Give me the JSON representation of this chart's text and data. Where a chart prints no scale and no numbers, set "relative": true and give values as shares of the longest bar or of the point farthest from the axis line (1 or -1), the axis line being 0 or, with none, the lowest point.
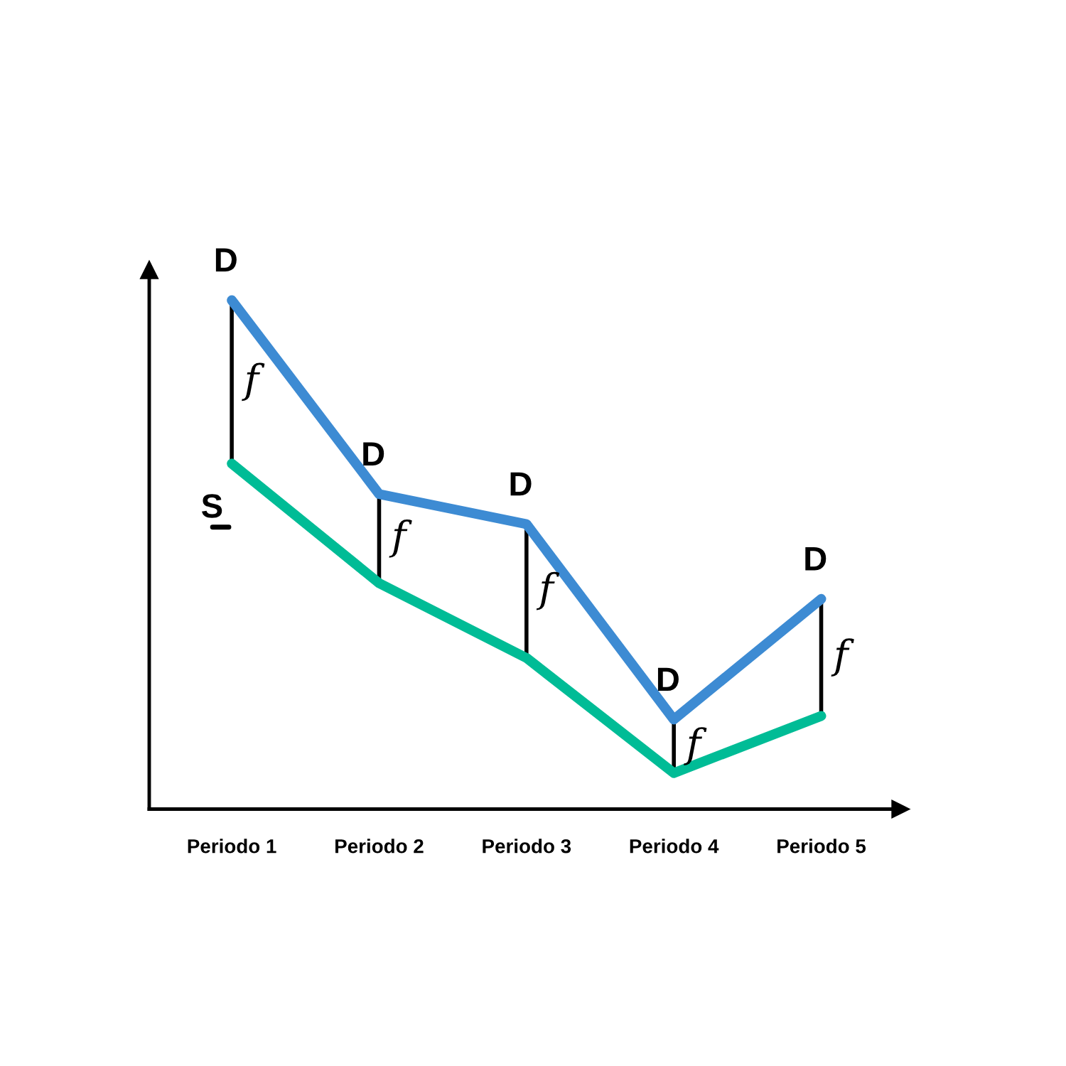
{
  "chart_data": {
    "type": "line",
    "relative": true,
    "categories": [
      "Periodo 1",
      "Periodo 2",
      "Periodo 3",
      "Periodo 4",
      "Periodo 5"
    ],
    "series": [
      {
        "color": "#3d8bd3",
        "values": [
          1.0,
          0.619,
          0.56,
          0.176,
          0.413
        ]
      },
      {
        "color": "#00bc96",
        "values": [
          0.679,
          0.444,
          0.297,
          0.071,
          0.183
        ]
      }
    ],
    "annotations": [
      {
        "text": "D",
        "x": "Periodo 1",
        "y": 1.0
      },
      {
        "text": "D",
        "x": "Periodo 2",
        "y": 0.619
      },
      {
        "text": "D",
        "x": "Periodo 3",
        "y": 0.56
      },
      {
        "text": "D",
        "x": "Periodo 4",
        "y": 0.176
      },
      {
        "text": "D",
        "x": "Periodo 5",
        "y": 0.413
      },
      {
        "text": "S",
        "x": "Periodo 1",
        "y": 0.679
      },
      "f",
      "f",
      "f",
      "f",
      "f"
    ],
    "grid": false,
    "line_style": "solid"
  }
}
